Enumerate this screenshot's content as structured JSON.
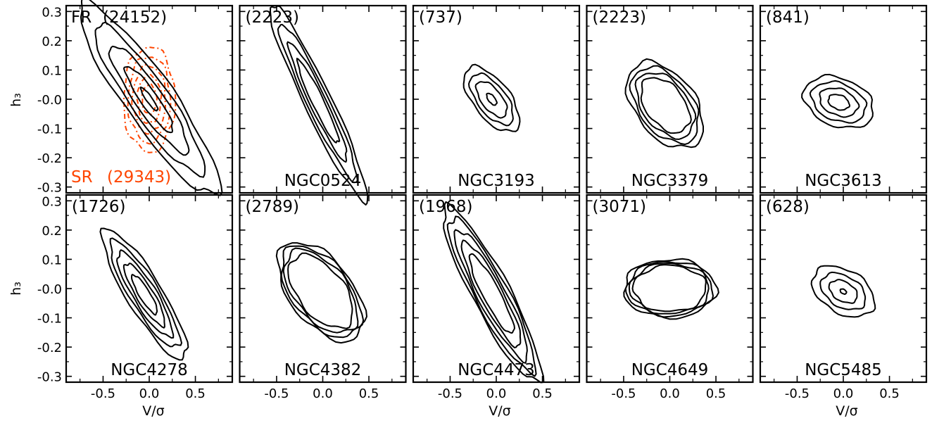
{
  "figure": {
    "xlabel": "V/σ",
    "ylabel": "h₃",
    "colors": {
      "fast_rotators": "#000000",
      "slow_rotators": "#ff4500"
    }
  },
  "chart_data": {
    "type": "contour",
    "layout": {
      "rows": 2,
      "cols": 5,
      "shared_axes": true
    },
    "xlim": [
      -0.9,
      0.9
    ],
    "ylim": [
      -0.32,
      0.32
    ],
    "xticks": [
      -0.5,
      0.0,
      0.5
    ],
    "yticks": [
      -0.3,
      -0.2,
      -0.1,
      0.0,
      0.1,
      0.2,
      0.3
    ],
    "xtick_labels": [
      "-0.5",
      "0.0",
      "0.5"
    ],
    "ytick_labels": [
      "-0.3",
      "-0.2",
      "-0.1",
      "-0.0",
      "0.1",
      "0.2",
      "0.3"
    ],
    "panels": [
      {
        "count_label": "(2223)",
        "name": "NGC0524",
        "contours": [
          {
            "center": [
              -0.05,
              -0.01
            ],
            "sx": 0.62,
            "sy": 0.09,
            "angle": -32,
            "levels": [
              1.0,
              0.8,
              0.6,
              0.42
            ]
          }
        ]
      },
      {
        "count_label": "(737)",
        "name": "NGC3193",
        "contours": [
          {
            "center": [
              -0.05,
              0.0
            ],
            "sx": 0.31,
            "sy": 0.085,
            "angle": -14,
            "levels": [
              1.0,
              0.78,
              0.55,
              0.18
            ]
          }
        ]
      },
      {
        "count_label": "(2223)",
        "name": "NGC3379",
        "contours": [
          {
            "center": [
              -0.05,
              -0.02
            ],
            "sx": 0.42,
            "sy": 0.13,
            "angle": -10,
            "levels": [
              1.0,
              0.88,
              0.76,
              0.64
            ]
          }
        ]
      },
      {
        "count_label": "(841)",
        "name": "NGC3613",
        "contours": [
          {
            "center": [
              -0.05,
              -0.01
            ],
            "sx": 0.38,
            "sy": 0.085,
            "angle": -4,
            "levels": [
              1.0,
              0.78,
              0.55,
              0.3
            ]
          }
        ]
      },
      {
        "count_label": "(1726)",
        "name": "NGC4278",
        "contours": [
          {
            "center": [
              -0.05,
              -0.02
            ],
            "sx": 0.5,
            "sy": 0.1,
            "angle": -24,
            "levels": [
              1.0,
              0.82,
              0.65,
              0.48,
              0.3
            ]
          }
        ]
      },
      {
        "count_label": "(2789)",
        "name": "NGC4382",
        "contours": [
          {
            "center": [
              -0.02,
              -0.01
            ],
            "sx": 0.48,
            "sy": 0.14,
            "angle": -12,
            "levels": [
              1.0,
              0.92,
              0.84,
              0.74
            ]
          }
        ]
      },
      {
        "count_label": "(1968)",
        "name": "NGC4473",
        "contours": [
          {
            "center": [
              -0.05,
              -0.02
            ],
            "sx": 0.6,
            "sy": 0.115,
            "angle": -28,
            "levels": [
              1.0,
              0.88,
              0.74,
              0.6,
              0.45
            ]
          }
        ]
      },
      {
        "count_label": "(3071)",
        "name": "NGC4649",
        "contours": [
          {
            "center": [
              0.0,
              0.0
            ],
            "sx": 0.5,
            "sy": 0.1,
            "angle": 0,
            "levels": [
              1.0,
              0.93,
              0.86,
              0.79
            ]
          }
        ]
      },
      {
        "count_label": "(628)",
        "name": "NGC5485",
        "contours": [
          {
            "center": [
              0.0,
              -0.01
            ],
            "sx": 0.34,
            "sy": 0.08,
            "angle": -6,
            "levels": [
              1.0,
              0.72,
              0.45,
              0.1
            ]
          }
        ]
      }
    ],
    "summary_panel": {
      "fast_rotators": {
        "label": "FR",
        "count_label": "(24152)",
        "center": [
          0.0,
          0.0
        ],
        "sx": 0.82,
        "sy": 0.13,
        "angle": -22,
        "levels": [
          1.0,
          0.78,
          0.56,
          0.34,
          0.12
        ]
      },
      "slow_rotators": {
        "label": "SR",
        "count_label": "(29343)",
        "center": [
          0.0,
          0.0
        ],
        "sx": 0.28,
        "sy": 0.18,
        "angle": 0,
        "levels": [
          1.0,
          0.82,
          0.64,
          0.46,
          0.28
        ]
      }
    }
  }
}
